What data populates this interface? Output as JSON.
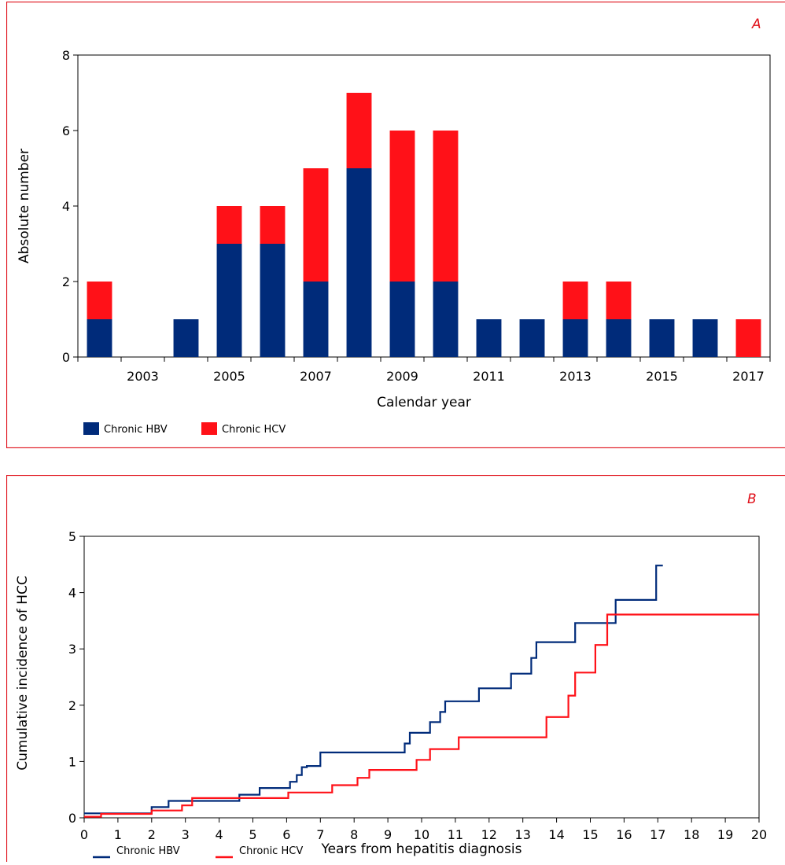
{
  "colors": {
    "hbv": "#002b7a",
    "hcv": "#ff1118",
    "frame": "#e0101a",
    "panel_letter": "#e0101a"
  },
  "chart_data": [
    {
      "type": "bar",
      "stacked": true,
      "panel_label": "A",
      "title": "",
      "xlabel": "Calendar year",
      "ylabel": "Absolute number",
      "ylim": [
        0,
        8
      ],
      "yticks": [
        "0",
        "2",
        "4",
        "6",
        "8"
      ],
      "categories": [
        "2002",
        "2003",
        "2004",
        "2005",
        "2006",
        "2007",
        "2008",
        "2009",
        "2010",
        "2011",
        "2012",
        "2013",
        "2014",
        "2015",
        "2016",
        "2017"
      ],
      "tick_labels": [
        "",
        "2003",
        "",
        "2005",
        "",
        "2007",
        "",
        "2009",
        "",
        "2011",
        "",
        "2013",
        "",
        "2015",
        "",
        "2017"
      ],
      "series": [
        {
          "name": "Chronic HBV",
          "values": [
            1,
            0,
            1,
            3,
            3,
            2,
            5,
            2,
            2,
            1,
            1,
            1,
            1,
            1,
            1,
            0
          ]
        },
        {
          "name": "Chronic HCV",
          "values": [
            1,
            0,
            0,
            1,
            1,
            3,
            2,
            4,
            4,
            0,
            0,
            1,
            1,
            0,
            0,
            1
          ]
        }
      ],
      "legend_position": "bottom-left"
    },
    {
      "type": "line",
      "step": true,
      "panel_label": "B",
      "title": "",
      "xlabel": "Years from hepatitis diagnosis",
      "ylabel": "Cumulative incidence of HCC",
      "xlim": [
        0,
        20
      ],
      "ylim": [
        0,
        5
      ],
      "xticks": [
        "0",
        "1",
        "2",
        "3",
        "4",
        "5",
        "6",
        "7",
        "8",
        "9",
        "10",
        "11",
        "12",
        "13",
        "14",
        "15",
        "16",
        "17",
        "18",
        "19",
        "20"
      ],
      "yticks": [
        "0",
        "1",
        "2",
        "3",
        "4",
        "5"
      ],
      "series": [
        {
          "name": "Chronic HBV",
          "points": [
            [
              0,
              0.08
            ],
            [
              2,
              0.08
            ],
            [
              2,
              0.19
            ],
            [
              2.5,
              0.19
            ],
            [
              2.5,
              0.3
            ],
            [
              4.6,
              0.3
            ],
            [
              4.6,
              0.41
            ],
            [
              5.2,
              0.41
            ],
            [
              5.2,
              0.53
            ],
            [
              6.1,
              0.53
            ],
            [
              6.1,
              0.64
            ],
            [
              6.3,
              0.64
            ],
            [
              6.3,
              0.76
            ],
            [
              6.45,
              0.76
            ],
            [
              6.45,
              0.9
            ],
            [
              6.6,
              0.9
            ],
            [
              6.6,
              0.92
            ],
            [
              7,
              0.92
            ],
            [
              7,
              1.16
            ],
            [
              9.5,
              1.16
            ],
            [
              9.5,
              1.32
            ],
            [
              9.65,
              1.32
            ],
            [
              9.65,
              1.51
            ],
            [
              10.25,
              1.51
            ],
            [
              10.25,
              1.7
            ],
            [
              10.55,
              1.7
            ],
            [
              10.55,
              1.88
            ],
            [
              10.7,
              1.88
            ],
            [
              10.7,
              2.07
            ],
            [
              11.7,
              2.07
            ],
            [
              11.7,
              2.3
            ],
            [
              12.65,
              2.3
            ],
            [
              12.65,
              2.56
            ],
            [
              13.25,
              2.56
            ],
            [
              13.25,
              2.84
            ],
            [
              13.4,
              2.84
            ],
            [
              13.4,
              3.12
            ],
            [
              14.55,
              3.12
            ],
            [
              14.55,
              3.46
            ],
            [
              15.75,
              3.46
            ],
            [
              15.75,
              3.87
            ],
            [
              16.95,
              3.87
            ],
            [
              16.95,
              4.48
            ],
            [
              17.15,
              4.48
            ]
          ]
        },
        {
          "name": "Chronic HCV",
          "points": [
            [
              0,
              0.02
            ],
            [
              0.5,
              0.02
            ],
            [
              0.5,
              0.07
            ],
            [
              2,
              0.07
            ],
            [
              2,
              0.13
            ],
            [
              2.9,
              0.13
            ],
            [
              2.9,
              0.22
            ],
            [
              3.2,
              0.22
            ],
            [
              3.2,
              0.35
            ],
            [
              6.05,
              0.35
            ],
            [
              6.05,
              0.45
            ],
            [
              7.35,
              0.45
            ],
            [
              7.35,
              0.58
            ],
            [
              8.1,
              0.58
            ],
            [
              8.1,
              0.71
            ],
            [
              8.45,
              0.71
            ],
            [
              8.45,
              0.85
            ],
            [
              9.85,
              0.85
            ],
            [
              9.85,
              1.03
            ],
            [
              10.25,
              1.03
            ],
            [
              10.25,
              1.22
            ],
            [
              11.1,
              1.22
            ],
            [
              11.1,
              1.43
            ],
            [
              13.7,
              1.43
            ],
            [
              13.7,
              1.79
            ],
            [
              14.35,
              1.79
            ],
            [
              14.35,
              2.17
            ],
            [
              14.55,
              2.17
            ],
            [
              14.55,
              2.58
            ],
            [
              15.15,
              2.58
            ],
            [
              15.15,
              3.07
            ],
            [
              15.5,
              3.07
            ],
            [
              15.5,
              3.61
            ],
            [
              20,
              3.61
            ]
          ]
        }
      ],
      "legend_position": "bottom-left"
    }
  ]
}
